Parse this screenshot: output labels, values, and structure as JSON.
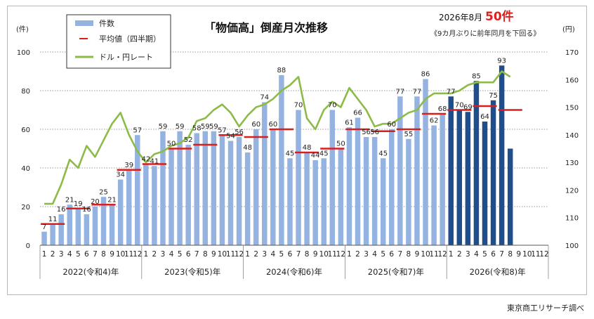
{
  "chart_data": {
    "type": "bar",
    "title": "「物価高」倒産月次推移",
    "headline": {
      "prefix": "2026年8月",
      "value": "50件",
      "note": "《9カ月ぶりに前年同月を下回る》"
    },
    "left_axis_unit": "(件)",
    "right_axis_unit": "(円)",
    "ylim": [
      0,
      100
    ],
    "y_ticks": [
      0,
      20,
      40,
      60,
      80,
      100
    ],
    "y2lim": [
      100,
      170
    ],
    "y2_ticks": [
      100,
      110,
      120,
      130,
      140,
      150,
      160,
      170
    ],
    "legend": {
      "bar": "件数",
      "avg": "平均値（四半期）",
      "fx": "ドル・円レート"
    },
    "year_labels": [
      "2022(令和4)年",
      "2023(令和5)年",
      "2024(令和6)年",
      "2025(令和7)年",
      "2026(令和8)年"
    ],
    "month_labels": [
      "1",
      "2",
      "3",
      "4",
      "5",
      "6",
      "7",
      "8",
      "9",
      "10",
      "11",
      "12"
    ],
    "values": [
      7,
      11,
      16,
      21,
      19,
      16,
      20,
      25,
      21,
      34,
      39,
      57,
      42,
      41,
      59,
      50,
      59,
      52,
      58,
      59,
      59,
      57,
      54,
      56,
      48,
      60,
      74,
      60,
      88,
      45,
      70,
      48,
      44,
      45,
      70,
      50,
      61,
      66,
      56,
      56,
      45,
      60,
      77,
      55,
      77,
      86,
      62,
      68,
      77,
      70,
      69,
      85,
      64,
      75,
      93,
      50
    ],
    "value_labels": [
      7,
      11,
      16,
      21,
      19,
      16,
      20,
      25,
      21,
      34,
      39,
      57,
      42,
      41,
      59,
      50,
      59,
      52,
      58,
      59,
      59,
      57,
      54,
      56,
      48,
      60,
      74,
      60,
      88,
      45,
      70,
      48,
      44,
      45,
      70,
      50,
      61,
      66,
      56,
      56,
      45,
      60,
      77,
      55,
      77,
      86,
      62,
      68,
      77,
      70,
      69,
      85,
      64,
      75,
      93,
      null
    ],
    "highlight_from_index": 48,
    "quarterly_avg": [
      11,
      19,
      21,
      39,
      42,
      50,
      52,
      57,
      56,
      60,
      48,
      50,
      60,
      59,
      60,
      68,
      70,
      72,
      70
    ],
    "fx_rate": [
      115,
      115,
      122,
      131,
      128,
      136,
      132,
      138,
      144,
      148,
      140,
      134,
      130,
      133,
      134,
      136,
      137,
      139,
      145,
      146,
      149,
      151,
      148,
      143,
      147,
      150,
      151,
      153,
      156,
      158,
      161,
      146,
      142,
      149,
      152,
      150,
      157,
      153,
      149,
      143,
      144,
      144,
      146,
      148,
      149,
      153,
      155,
      155,
      155,
      156,
      158,
      159,
      159,
      159,
      163,
      161
    ]
  },
  "source": "東京商工リサーチ調べ"
}
